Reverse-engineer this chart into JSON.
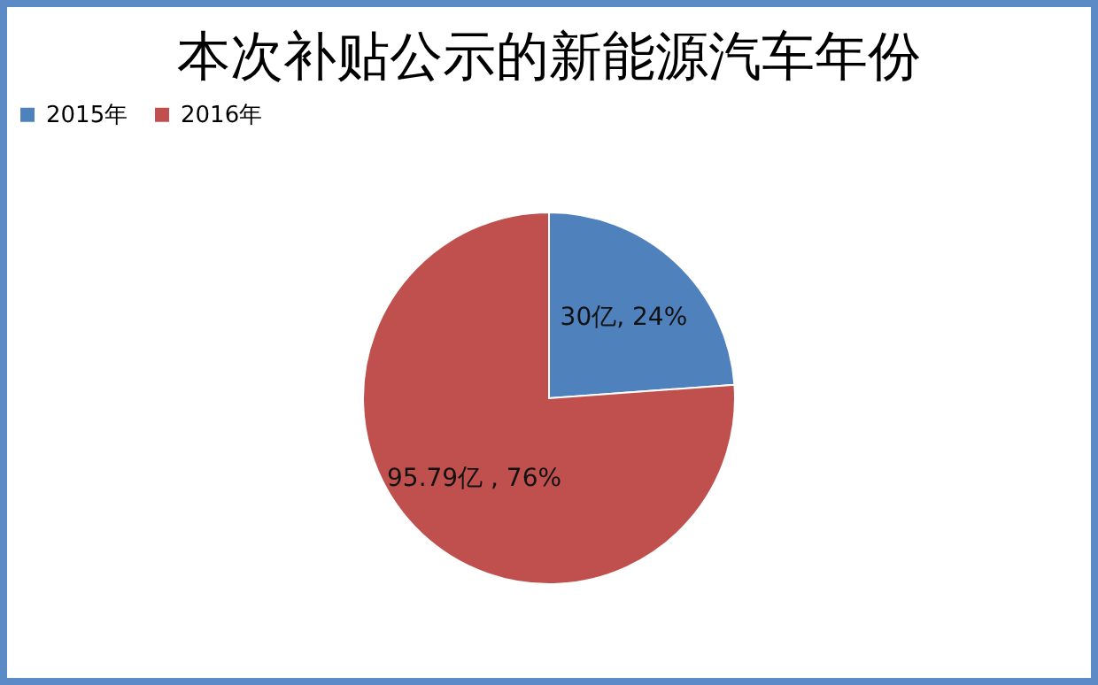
{
  "chart_data": {
    "type": "pie",
    "title": "本次补贴公示的新能源汽车年份",
    "categories": [
      "2015年",
      "2016年"
    ],
    "values": [
      30,
      95.79
    ],
    "colors": [
      "#4f81bd",
      "#c0504d"
    ],
    "value_labels": [
      "30亿, 24%",
      "95.79亿 , 76%"
    ],
    "legend": "top"
  }
}
